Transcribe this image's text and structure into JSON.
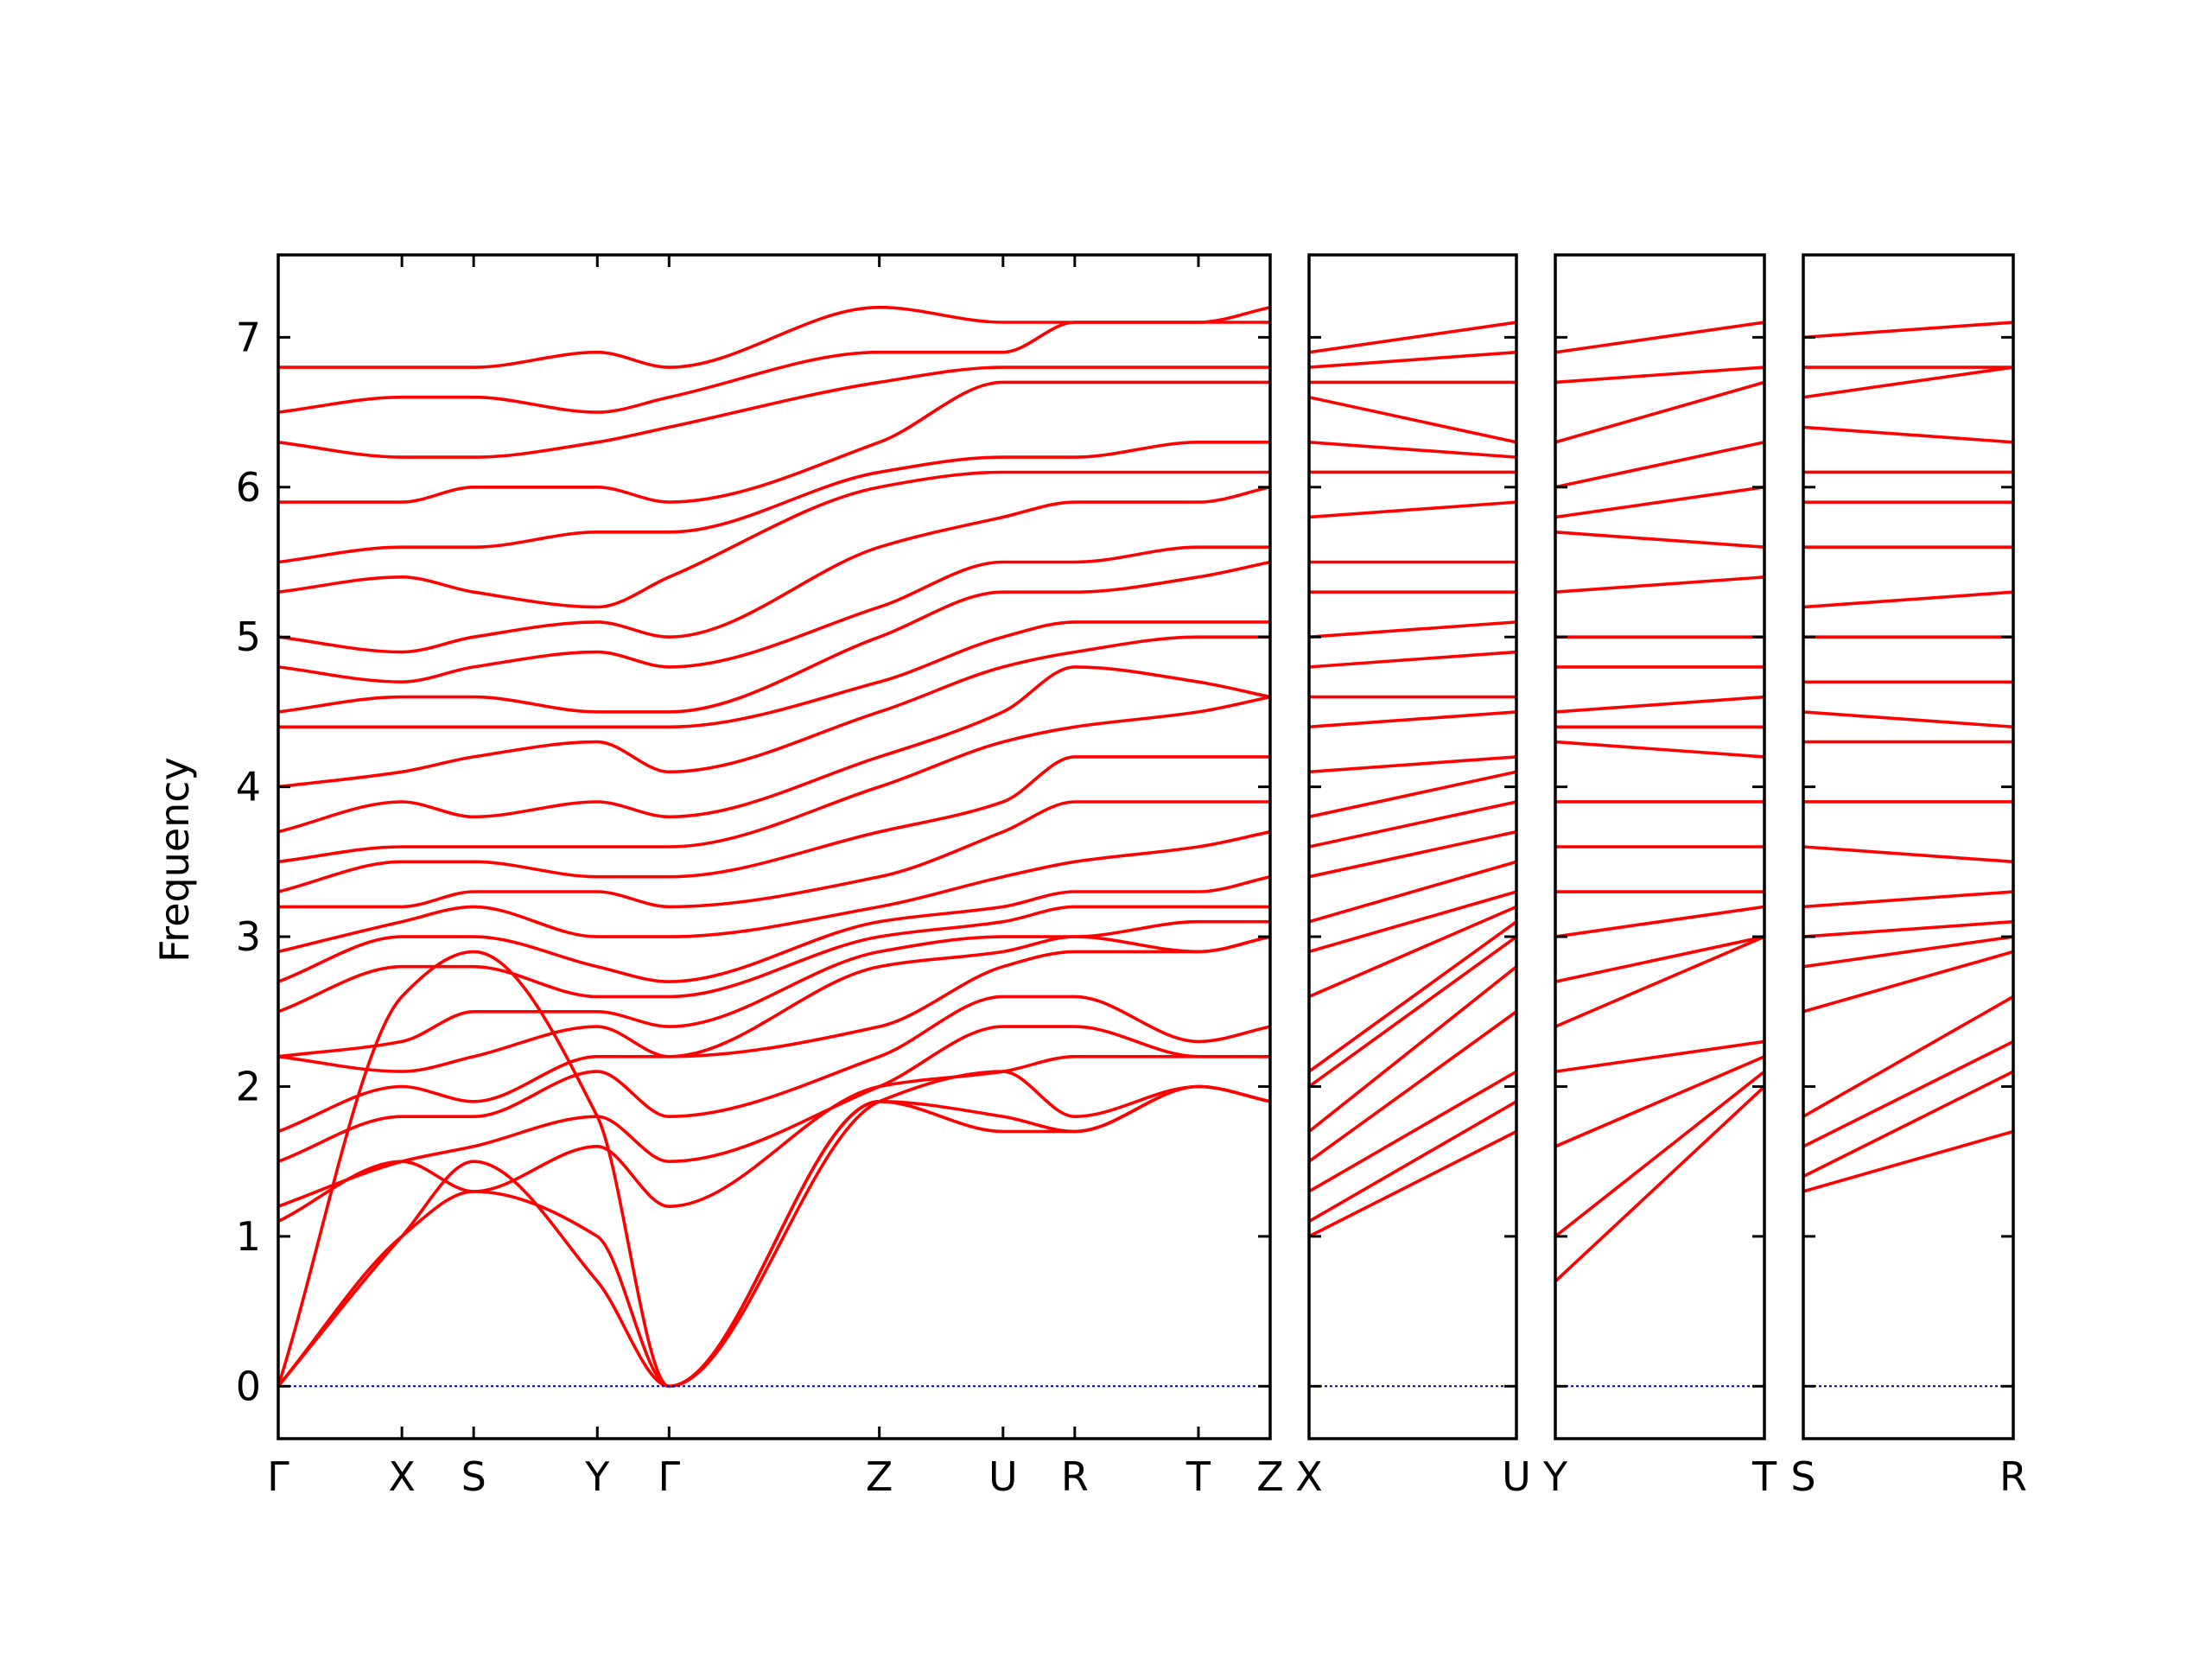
{
  "chart_data": {
    "type": "line",
    "ylabel": "Frequency",
    "ylim": [
      -0.35,
      7.55
    ],
    "yticks": [
      0,
      1,
      2,
      3,
      4,
      5,
      6,
      7
    ],
    "colors": {
      "bands": "#ff0000",
      "zero_line": "#0000aa",
      "axes": "#000000"
    },
    "grid": false,
    "legend": "none",
    "panels": [
      {
        "labels": [
          "Γ",
          "X",
          "S",
          "Y",
          "Γ",
          "Z",
          "U",
          "R",
          "T",
          "Z"
        ],
        "qpoints": [
          0,
          1,
          1.58,
          2.58,
          3.16,
          4.86,
          5.86,
          6.44,
          7.44,
          8.02
        ],
        "anchors": [
          [
            0,
            2.6,
            2.9,
            1.8,
            0,
            1.9,
            2.1,
            1.8,
            2.0,
            1.9
          ],
          [
            0,
            1.0,
            1.3,
            1.0,
            0,
            1.9,
            1.8,
            1.7,
            2.0,
            1.9
          ],
          [
            0,
            1.0,
            1.5,
            0.7,
            0,
            1.9,
            1.7,
            1.7,
            2.0,
            1.9
          ],
          [
            1.1,
            1.5,
            1.3,
            1.6,
            1.2,
            2.0,
            2.1,
            2.2,
            2.2,
            2.2
          ],
          [
            1.2,
            1.5,
            1.6,
            1.8,
            1.5,
            2.0,
            2.4,
            2.4,
            2.2,
            2.2
          ],
          [
            1.5,
            1.8,
            1.8,
            2.1,
            1.8,
            2.2,
            2.6,
            2.6,
            2.3,
            2.4
          ],
          [
            1.7,
            2.0,
            1.9,
            2.2,
            2.2,
            2.4,
            2.8,
            2.9,
            2.9,
            3.0
          ],
          [
            2.2,
            2.1,
            2.2,
            2.4,
            2.2,
            2.8,
            2.9,
            3.0,
            2.9,
            3.0
          ],
          [
            2.2,
            2.3,
            2.5,
            2.5,
            2.4,
            2.9,
            3.0,
            3.0,
            3.1,
            3.1
          ],
          [
            2.5,
            2.8,
            2.8,
            2.6,
            2.6,
            3.0,
            3.1,
            3.2,
            3.2,
            3.2
          ],
          [
            2.7,
            3.0,
            3.0,
            2.8,
            2.7,
            3.1,
            3.2,
            3.3,
            3.3,
            3.4
          ],
          [
            2.9,
            3.1,
            3.2,
            3.0,
            3.0,
            3.2,
            3.4,
            3.5,
            3.6,
            3.7
          ],
          [
            3.2,
            3.2,
            3.3,
            3.3,
            3.2,
            3.4,
            3.7,
            3.9,
            3.9,
            3.9
          ],
          [
            3.3,
            3.5,
            3.5,
            3.4,
            3.4,
            3.7,
            3.9,
            4.2,
            4.2,
            4.2
          ],
          [
            3.5,
            3.6,
            3.6,
            3.6,
            3.6,
            4.0,
            4.3,
            4.4,
            4.5,
            4.6
          ],
          [
            3.7,
            3.9,
            3.8,
            3.9,
            3.8,
            4.2,
            4.5,
            4.8,
            4.7,
            4.6
          ],
          [
            4.0,
            4.1,
            4.2,
            4.3,
            4.1,
            4.5,
            4.8,
            4.9,
            5.0,
            5.0
          ],
          [
            4.4,
            4.4,
            4.4,
            4.4,
            4.4,
            4.7,
            5.0,
            5.1,
            5.1,
            5.1
          ],
          [
            4.5,
            4.6,
            4.6,
            4.5,
            4.5,
            5.0,
            5.3,
            5.3,
            5.4,
            5.5
          ],
          [
            4.8,
            4.7,
            4.8,
            4.9,
            4.8,
            5.2,
            5.5,
            5.5,
            5.6,
            5.6
          ],
          [
            5.0,
            4.9,
            5.0,
            5.1,
            5.0,
            5.6,
            5.8,
            5.9,
            5.9,
            6.0
          ],
          [
            5.3,
            5.4,
            5.3,
            5.2,
            5.4,
            6.0,
            6.1,
            6.1,
            6.1,
            6.1
          ],
          [
            5.5,
            5.6,
            5.6,
            5.7,
            5.7,
            6.1,
            6.2,
            6.2,
            6.3,
            6.3
          ],
          [
            5.9,
            5.9,
            6.0,
            6.0,
            5.9,
            6.3,
            6.7,
            6.7,
            6.7,
            6.7
          ],
          [
            6.3,
            6.2,
            6.2,
            6.3,
            6.4,
            6.7,
            6.8,
            6.8,
            6.8,
            6.8
          ],
          [
            6.5,
            6.6,
            6.6,
            6.5,
            6.6,
            6.9,
            6.9,
            7.1,
            7.1,
            7.1
          ],
          [
            6.8,
            6.8,
            6.8,
            6.9,
            6.8,
            7.2,
            7.1,
            7.1,
            7.1,
            7.2
          ]
        ]
      },
      {
        "labels": [
          "X",
          "U"
        ],
        "qpoints": [
          0,
          1
        ],
        "anchors": [
          [
            1.0,
            1.7
          ],
          [
            1.1,
            1.9
          ],
          [
            1.3,
            2.1
          ],
          [
            1.5,
            2.5
          ],
          [
            1.7,
            2.8
          ],
          [
            2.0,
            3.0
          ],
          [
            2.1,
            3.1
          ],
          [
            2.6,
            3.2
          ],
          [
            2.9,
            3.3
          ],
          [
            3.1,
            3.5
          ],
          [
            3.4,
            3.7
          ],
          [
            3.6,
            3.9
          ],
          [
            3.8,
            4.1
          ],
          [
            4.1,
            4.2
          ],
          [
            4.4,
            4.5
          ],
          [
            4.6,
            4.6
          ],
          [
            4.8,
            4.9
          ],
          [
            5.0,
            5.1
          ],
          [
            5.3,
            5.3
          ],
          [
            5.5,
            5.5
          ],
          [
            5.8,
            5.9
          ],
          [
            6.1,
            6.1
          ],
          [
            6.3,
            6.2
          ],
          [
            6.6,
            6.3
          ],
          [
            6.7,
            6.7
          ],
          [
            6.8,
            6.9
          ],
          [
            6.9,
            7.1
          ]
        ]
      },
      {
        "labels": [
          "Y",
          "T"
        ],
        "qpoints": [
          0,
          1
        ],
        "anchors": [
          [
            0.7,
            2.0
          ],
          [
            1.0,
            2.1
          ],
          [
            1.6,
            2.2
          ],
          [
            2.1,
            2.3
          ],
          [
            2.4,
            3.0
          ],
          [
            2.7,
            3.0
          ],
          [
            3.0,
            3.2
          ],
          [
            3.3,
            3.3
          ],
          [
            3.6,
            3.6
          ],
          [
            3.9,
            3.9
          ],
          [
            4.3,
            4.2
          ],
          [
            4.4,
            4.4
          ],
          [
            4.5,
            4.6
          ],
          [
            4.8,
            4.8
          ],
          [
            5.0,
            5.0
          ],
          [
            5.3,
            5.4
          ],
          [
            5.7,
            5.6
          ],
          [
            5.8,
            6.0
          ],
          [
            6.0,
            6.3
          ],
          [
            6.3,
            6.7
          ],
          [
            6.7,
            6.8
          ],
          [
            6.9,
            7.1
          ]
        ]
      },
      {
        "labels": [
          "S",
          "R"
        ],
        "qpoints": [
          0,
          1
        ],
        "anchors": [
          [
            1.3,
            1.7
          ],
          [
            1.4,
            2.1
          ],
          [
            1.6,
            2.3
          ],
          [
            1.8,
            2.6
          ],
          [
            2.5,
            2.9
          ],
          [
            2.8,
            3.0
          ],
          [
            3.0,
            3.1
          ],
          [
            3.2,
            3.3
          ],
          [
            3.6,
            3.5
          ],
          [
            3.9,
            3.9
          ],
          [
            4.3,
            4.3
          ],
          [
            4.5,
            4.4
          ],
          [
            4.7,
            4.7
          ],
          [
            5.0,
            5.0
          ],
          [
            5.2,
            5.3
          ],
          [
            5.6,
            5.6
          ],
          [
            5.9,
            5.9
          ],
          [
            6.1,
            6.1
          ],
          [
            6.4,
            6.3
          ],
          [
            6.6,
            6.8
          ],
          [
            6.8,
            6.8
          ],
          [
            7.0,
            7.1
          ]
        ]
      }
    ]
  }
}
